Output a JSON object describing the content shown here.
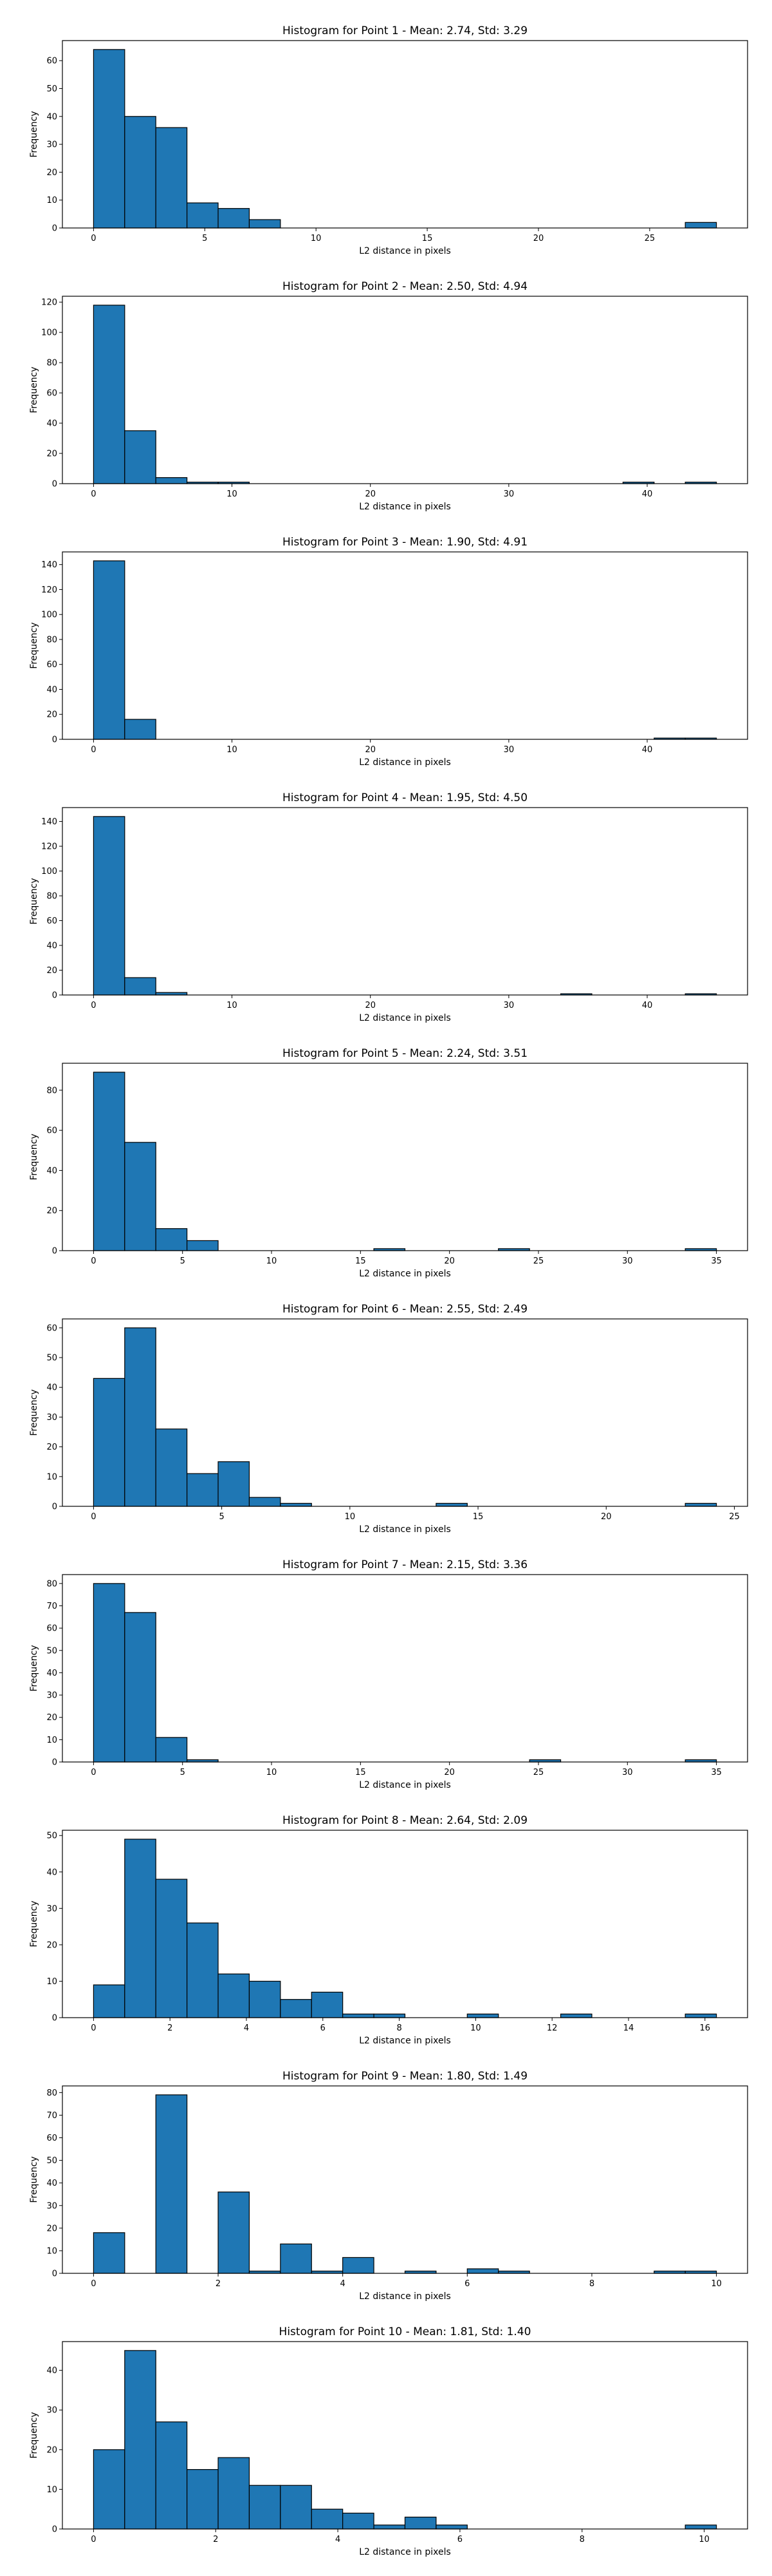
{
  "chart_data": [
    {
      "type": "bar",
      "title": "Histogram for Point 1 - Mean: 2.74, Std: 3.29",
      "xlabel": "L2 distance in pixels",
      "ylabel": "Frequency",
      "xlim": [
        -1.4,
        29.4
      ],
      "ylim": [
        0,
        67.2
      ],
      "xticks": [
        0,
        5,
        10,
        15,
        20,
        25
      ],
      "yticks": [
        0,
        10,
        20,
        30,
        40,
        50,
        60
      ],
      "bins": [
        [
          0.0,
          1.4,
          64
        ],
        [
          1.4,
          2.8,
          40
        ],
        [
          2.8,
          4.2,
          36
        ],
        [
          4.2,
          5.6,
          9
        ],
        [
          5.6,
          7.0,
          7
        ],
        [
          7.0,
          8.4,
          3
        ],
        [
          8.4,
          9.8,
          0
        ],
        [
          9.8,
          11.2,
          0
        ],
        [
          11.2,
          12.6,
          0
        ],
        [
          12.6,
          14.0,
          0
        ],
        [
          14.0,
          15.4,
          0
        ],
        [
          15.4,
          16.8,
          0
        ],
        [
          16.8,
          18.2,
          0
        ],
        [
          18.2,
          19.6,
          0
        ],
        [
          19.6,
          21.0,
          0
        ],
        [
          21.0,
          22.4,
          0
        ],
        [
          22.4,
          23.8,
          0
        ],
        [
          23.8,
          25.2,
          0
        ],
        [
          25.2,
          26.6,
          0
        ],
        [
          26.6,
          28.0,
          2
        ]
      ]
    },
    {
      "type": "bar",
      "title": "Histogram for Point 2 - Mean: 2.50, Std: 4.94",
      "xlabel": "L2 distance in pixels",
      "ylabel": "Frequency",
      "xlim": [
        -2.25,
        47.25
      ],
      "ylim": [
        0,
        123.9
      ],
      "xticks": [
        0,
        10,
        20,
        30,
        40
      ],
      "yticks": [
        0,
        20,
        40,
        60,
        80,
        100,
        120
      ],
      "bins": [
        [
          0.0,
          2.25,
          118
        ],
        [
          2.25,
          4.5,
          35
        ],
        [
          4.5,
          6.75,
          4
        ],
        [
          6.75,
          9.0,
          1
        ],
        [
          9.0,
          11.25,
          1
        ],
        [
          11.25,
          13.5,
          0
        ],
        [
          13.5,
          15.75,
          0
        ],
        [
          15.75,
          18.0,
          0
        ],
        [
          18.0,
          20.25,
          0
        ],
        [
          20.25,
          22.5,
          0
        ],
        [
          22.5,
          24.75,
          0
        ],
        [
          24.75,
          27.0,
          0
        ],
        [
          27.0,
          29.25,
          0
        ],
        [
          29.25,
          31.5,
          0
        ],
        [
          31.5,
          33.75,
          0
        ],
        [
          33.75,
          36.0,
          0
        ],
        [
          36.0,
          38.25,
          0
        ],
        [
          38.25,
          40.5,
          1
        ],
        [
          40.5,
          42.75,
          0
        ],
        [
          42.75,
          45.0,
          1
        ]
      ]
    },
    {
      "type": "bar",
      "title": "Histogram for Point 3 - Mean: 1.90, Std: 4.91",
      "xlabel": "L2 distance in pixels",
      "ylabel": "Frequency",
      "xlim": [
        -2.25,
        47.25
      ],
      "ylim": [
        0,
        150.15
      ],
      "xticks": [
        0,
        10,
        20,
        30,
        40
      ],
      "yticks": [
        0,
        20,
        40,
        60,
        80,
        100,
        120,
        140
      ],
      "bins": [
        [
          0.0,
          2.25,
          143
        ],
        [
          2.25,
          4.5,
          16
        ],
        [
          4.5,
          6.75,
          0
        ],
        [
          6.75,
          9.0,
          0
        ],
        [
          9.0,
          11.25,
          0
        ],
        [
          11.25,
          13.5,
          0
        ],
        [
          13.5,
          15.75,
          0
        ],
        [
          15.75,
          18.0,
          0
        ],
        [
          18.0,
          20.25,
          0
        ],
        [
          20.25,
          22.5,
          0
        ],
        [
          22.5,
          24.75,
          0
        ],
        [
          24.75,
          27.0,
          0
        ],
        [
          27.0,
          29.25,
          0
        ],
        [
          29.25,
          31.5,
          0
        ],
        [
          31.5,
          33.75,
          0
        ],
        [
          33.75,
          36.0,
          0
        ],
        [
          36.0,
          38.25,
          0
        ],
        [
          38.25,
          40.5,
          0
        ],
        [
          40.5,
          42.75,
          1
        ],
        [
          42.75,
          45.0,
          1
        ]
      ]
    },
    {
      "type": "bar",
      "title": "Histogram for Point 4 - Mean: 1.95, Std: 4.50",
      "xlabel": "L2 distance in pixels",
      "ylabel": "Frequency",
      "xlim": [
        -2.25,
        47.25
      ],
      "ylim": [
        0,
        151.2
      ],
      "xticks": [
        0,
        10,
        20,
        30,
        40
      ],
      "yticks": [
        0,
        20,
        40,
        60,
        80,
        100,
        120,
        140
      ],
      "bins": [
        [
          0.0,
          2.25,
          144
        ],
        [
          2.25,
          4.5,
          14
        ],
        [
          4.5,
          6.75,
          2
        ],
        [
          6.75,
          9.0,
          0
        ],
        [
          9.0,
          11.25,
          0
        ],
        [
          11.25,
          13.5,
          0
        ],
        [
          13.5,
          15.75,
          0
        ],
        [
          15.75,
          18.0,
          0
        ],
        [
          18.0,
          20.25,
          0
        ],
        [
          20.25,
          22.5,
          0
        ],
        [
          22.5,
          24.75,
          0
        ],
        [
          24.75,
          27.0,
          0
        ],
        [
          27.0,
          29.25,
          0
        ],
        [
          29.25,
          31.5,
          0
        ],
        [
          31.5,
          33.75,
          0
        ],
        [
          33.75,
          36.0,
          1
        ],
        [
          36.0,
          38.25,
          0
        ],
        [
          38.25,
          40.5,
          0
        ],
        [
          40.5,
          42.75,
          0
        ],
        [
          42.75,
          45.0,
          1
        ]
      ]
    },
    {
      "type": "bar",
      "title": "Histogram for Point 5 - Mean: 2.24, Std: 3.51",
      "xlabel": "L2 distance in pixels",
      "ylabel": "Frequency",
      "xlim": [
        -1.75,
        36.75
      ],
      "ylim": [
        0,
        93.45
      ],
      "xticks": [
        0,
        5,
        10,
        15,
        20,
        25,
        30,
        35
      ],
      "yticks": [
        0,
        20,
        40,
        60,
        80
      ],
      "bins": [
        [
          0.0,
          1.75,
          89
        ],
        [
          1.75,
          3.5,
          54
        ],
        [
          3.5,
          5.25,
          11
        ],
        [
          5.25,
          7.0,
          5
        ],
        [
          7.0,
          8.75,
          0
        ],
        [
          8.75,
          10.5,
          0
        ],
        [
          10.5,
          12.25,
          0
        ],
        [
          12.25,
          14.0,
          0
        ],
        [
          14.0,
          15.75,
          0
        ],
        [
          15.75,
          17.5,
          1
        ],
        [
          17.5,
          19.25,
          0
        ],
        [
          19.25,
          21.0,
          0
        ],
        [
          21.0,
          22.75,
          0
        ],
        [
          22.75,
          24.5,
          1
        ],
        [
          24.5,
          26.25,
          0
        ],
        [
          26.25,
          28.0,
          0
        ],
        [
          28.0,
          29.75,
          0
        ],
        [
          29.75,
          31.5,
          0
        ],
        [
          31.5,
          33.25,
          0
        ],
        [
          33.25,
          35.0,
          1
        ]
      ]
    },
    {
      "type": "bar",
      "title": "Histogram for Point 6 - Mean: 2.55, Std: 2.49",
      "xlabel": "L2 distance in pixels",
      "ylabel": "Frequency",
      "xlim": [
        -1.215,
        25.515
      ],
      "ylim": [
        0,
        63.0
      ],
      "xticks": [
        0,
        5,
        10,
        15,
        20,
        25
      ],
      "yticks": [
        0,
        10,
        20,
        30,
        40,
        50,
        60
      ],
      "bins": [
        [
          0.0,
          1.215,
          43
        ],
        [
          1.215,
          2.43,
          60
        ],
        [
          2.43,
          3.645,
          26
        ],
        [
          3.645,
          4.86,
          11
        ],
        [
          4.86,
          6.075,
          15
        ],
        [
          6.075,
          7.29,
          3
        ],
        [
          7.29,
          8.505,
          1
        ],
        [
          8.505,
          9.72,
          0
        ],
        [
          9.72,
          10.935,
          0
        ],
        [
          10.935,
          12.15,
          0
        ],
        [
          12.15,
          13.365,
          0
        ],
        [
          13.365,
          14.58,
          1
        ],
        [
          14.58,
          15.795,
          0
        ],
        [
          15.795,
          17.01,
          0
        ],
        [
          17.01,
          18.225,
          0
        ],
        [
          18.225,
          19.44,
          0
        ],
        [
          19.44,
          20.655,
          0
        ],
        [
          20.655,
          21.87,
          0
        ],
        [
          21.87,
          23.085,
          0
        ],
        [
          23.085,
          24.3,
          1
        ]
      ]
    },
    {
      "type": "bar",
      "title": "Histogram for Point 7 - Mean: 2.15, Std: 3.36",
      "xlabel": "L2 distance in pixels",
      "ylabel": "Frequency",
      "xlim": [
        -1.75,
        36.75
      ],
      "ylim": [
        0,
        84.0
      ],
      "xticks": [
        0,
        5,
        10,
        15,
        20,
        25,
        30,
        35
      ],
      "yticks": [
        0,
        10,
        20,
        30,
        40,
        50,
        60,
        70,
        80
      ],
      "bins": [
        [
          0.0,
          1.75,
          80
        ],
        [
          1.75,
          3.5,
          67
        ],
        [
          3.5,
          5.25,
          11
        ],
        [
          5.25,
          7.0,
          1
        ],
        [
          7.0,
          8.75,
          0
        ],
        [
          8.75,
          10.5,
          0
        ],
        [
          10.5,
          12.25,
          0
        ],
        [
          12.25,
          14.0,
          0
        ],
        [
          14.0,
          15.75,
          0
        ],
        [
          15.75,
          17.5,
          0
        ],
        [
          17.5,
          19.25,
          0
        ],
        [
          19.25,
          21.0,
          0
        ],
        [
          21.0,
          22.75,
          0
        ],
        [
          22.75,
          24.5,
          0
        ],
        [
          24.5,
          26.25,
          1
        ],
        [
          26.25,
          28.0,
          0
        ],
        [
          28.0,
          29.75,
          0
        ],
        [
          29.75,
          31.5,
          0
        ],
        [
          31.5,
          33.25,
          0
        ],
        [
          33.25,
          35.0,
          1
        ]
      ]
    },
    {
      "type": "bar",
      "title": "Histogram for Point 8 - Mean: 2.64, Std: 2.09",
      "xlabel": "L2 distance in pixels",
      "ylabel": "Frequency",
      "xlim": [
        -0.815,
        17.115
      ],
      "ylim": [
        0,
        51.45
      ],
      "xticks": [
        0,
        2,
        4,
        6,
        8,
        10,
        12,
        14,
        16
      ],
      "yticks": [
        0,
        10,
        20,
        30,
        40,
        50
      ],
      "bins": [
        [
          0.0,
          0.815,
          9
        ],
        [
          0.815,
          1.63,
          49
        ],
        [
          1.63,
          2.445,
          38
        ],
        [
          2.445,
          3.26,
          26
        ],
        [
          3.26,
          4.075,
          12
        ],
        [
          4.075,
          4.89,
          10
        ],
        [
          4.89,
          5.705,
          5
        ],
        [
          5.705,
          6.52,
          7
        ],
        [
          6.52,
          7.335,
          1
        ],
        [
          7.335,
          8.15,
          1
        ],
        [
          8.15,
          8.965,
          0
        ],
        [
          8.965,
          9.78,
          0
        ],
        [
          9.78,
          10.595,
          1
        ],
        [
          10.595,
          11.41,
          0
        ],
        [
          11.41,
          12.225,
          0
        ],
        [
          12.225,
          13.04,
          1
        ],
        [
          13.04,
          13.855,
          0
        ],
        [
          13.855,
          14.67,
          0
        ],
        [
          14.67,
          15.485,
          0
        ],
        [
          15.485,
          16.3,
          1
        ]
      ]
    },
    {
      "type": "bar",
      "title": "Histogram for Point 9 - Mean: 1.80, Std: 1.49",
      "xlabel": "L2 distance in pixels",
      "ylabel": "Frequency",
      "xlim": [
        -0.5,
        10.5
      ],
      "ylim": [
        0,
        82.95
      ],
      "xticks": [
        0,
        2,
        4,
        6,
        8,
        10
      ],
      "yticks": [
        0,
        10,
        20,
        30,
        40,
        50,
        60,
        70,
        80
      ],
      "bins": [
        [
          0.0,
          0.5,
          18
        ],
        [
          0.5,
          1.0,
          0
        ],
        [
          1.0,
          1.5,
          79
        ],
        [
          1.5,
          2.0,
          0
        ],
        [
          2.0,
          2.5,
          36
        ],
        [
          2.5,
          3.0,
          1
        ],
        [
          3.0,
          3.5,
          13
        ],
        [
          3.5,
          4.0,
          1
        ],
        [
          4.0,
          4.5,
          7
        ],
        [
          4.5,
          5.0,
          0
        ],
        [
          5.0,
          5.5,
          1
        ],
        [
          5.5,
          6.0,
          0
        ],
        [
          6.0,
          6.5,
          2
        ],
        [
          6.5,
          7.0,
          1
        ],
        [
          7.0,
          7.5,
          0
        ],
        [
          7.5,
          8.0,
          0
        ],
        [
          8.0,
          8.5,
          0
        ],
        [
          8.5,
          9.0,
          0
        ],
        [
          9.0,
          9.5,
          1
        ],
        [
          9.5,
          10.0,
          1
        ]
      ]
    },
    {
      "type": "bar",
      "title": "Histogram for Point 10 - Mean: 1.81, Std: 1.40",
      "xlabel": "L2 distance in pixels",
      "ylabel": "Frequency",
      "xlim": [
        -0.51,
        10.71
      ],
      "ylim": [
        0,
        47.25
      ],
      "xticks": [
        0,
        2,
        4,
        6,
        8,
        10
      ],
      "yticks": [
        0,
        10,
        20,
        30,
        40
      ],
      "bins": [
        [
          0.0,
          0.51,
          20
        ],
        [
          0.51,
          1.02,
          45
        ],
        [
          1.02,
          1.53,
          27
        ],
        [
          1.53,
          2.04,
          15
        ],
        [
          2.04,
          2.55,
          18
        ],
        [
          2.55,
          3.06,
          11
        ],
        [
          3.06,
          3.57,
          11
        ],
        [
          3.57,
          4.08,
          5
        ],
        [
          4.08,
          4.59,
          4
        ],
        [
          4.59,
          5.1,
          1
        ],
        [
          5.1,
          5.61,
          3
        ],
        [
          5.61,
          6.12,
          1
        ],
        [
          6.12,
          6.63,
          0
        ],
        [
          6.63,
          7.14,
          0
        ],
        [
          7.14,
          7.65,
          0
        ],
        [
          7.65,
          8.16,
          0
        ],
        [
          8.16,
          8.67,
          0
        ],
        [
          8.67,
          9.18,
          0
        ],
        [
          9.18,
          9.69,
          0
        ],
        [
          9.69,
          10.2,
          1
        ]
      ]
    }
  ],
  "style": {
    "bar_fill": "#1f77b4",
    "bar_edge": "#000000",
    "axes_edge": "#000000"
  }
}
